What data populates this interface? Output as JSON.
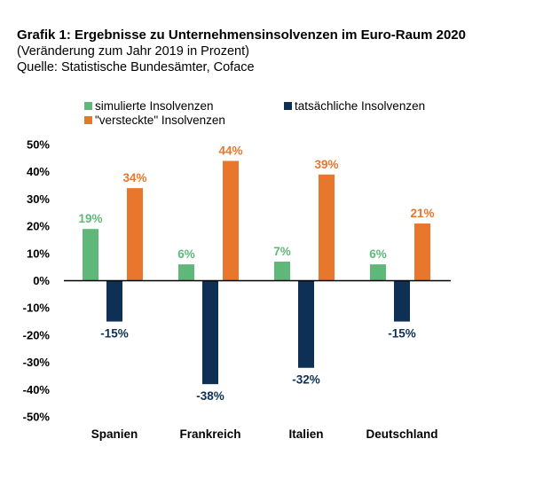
{
  "title": "Grafik 1: Ergebnisse zu Unternehmensinsolvenzen im Euro-Raum 2020",
  "subtitle": "(Veränderung zum Jahr 2019 in Prozent)",
  "source": "Quelle: Statistische Bundesämter, Coface",
  "colors": {
    "simuliert": "#5fb87a",
    "tatsaechlich": "#0d3054",
    "versteckt": "#e8762d",
    "axis": "#000000",
    "grid": "#d9d9d9"
  },
  "chart_data": {
    "type": "bar",
    "categories": [
      "Spanien",
      "Frankreich",
      "Italien",
      "Deutschland"
    ],
    "series": [
      {
        "name": "simulierte Insolvenzen",
        "key": "simuliert",
        "values": [
          19,
          6,
          7,
          6
        ],
        "labels": [
          "19%",
          "6%",
          "7%",
          "6%"
        ]
      },
      {
        "name": "tatsächliche Insolvenzen",
        "key": "tatsaechlich",
        "values": [
          -15,
          -38,
          -32,
          -15
        ],
        "labels": [
          "-15%",
          "-38%",
          "-32%",
          "-15%"
        ]
      },
      {
        "name": "\"versteckte\" Insolvenzen",
        "key": "versteckt",
        "values": [
          34,
          44,
          39,
          21
        ],
        "labels": [
          "34%",
          "44%",
          "39%",
          "21%"
        ]
      }
    ],
    "ylim": [
      -50,
      50
    ],
    "yticks": [
      "50%",
      "40%",
      "30%",
      "20%",
      "10%",
      "0%",
      "-10%",
      "-20%",
      "-30%",
      "-40%",
      "-50%"
    ],
    "ytick_values": [
      50,
      40,
      30,
      20,
      10,
      0,
      -10,
      -20,
      -30,
      -40,
      -50
    ],
    "legend_position": "top",
    "grid": false
  }
}
